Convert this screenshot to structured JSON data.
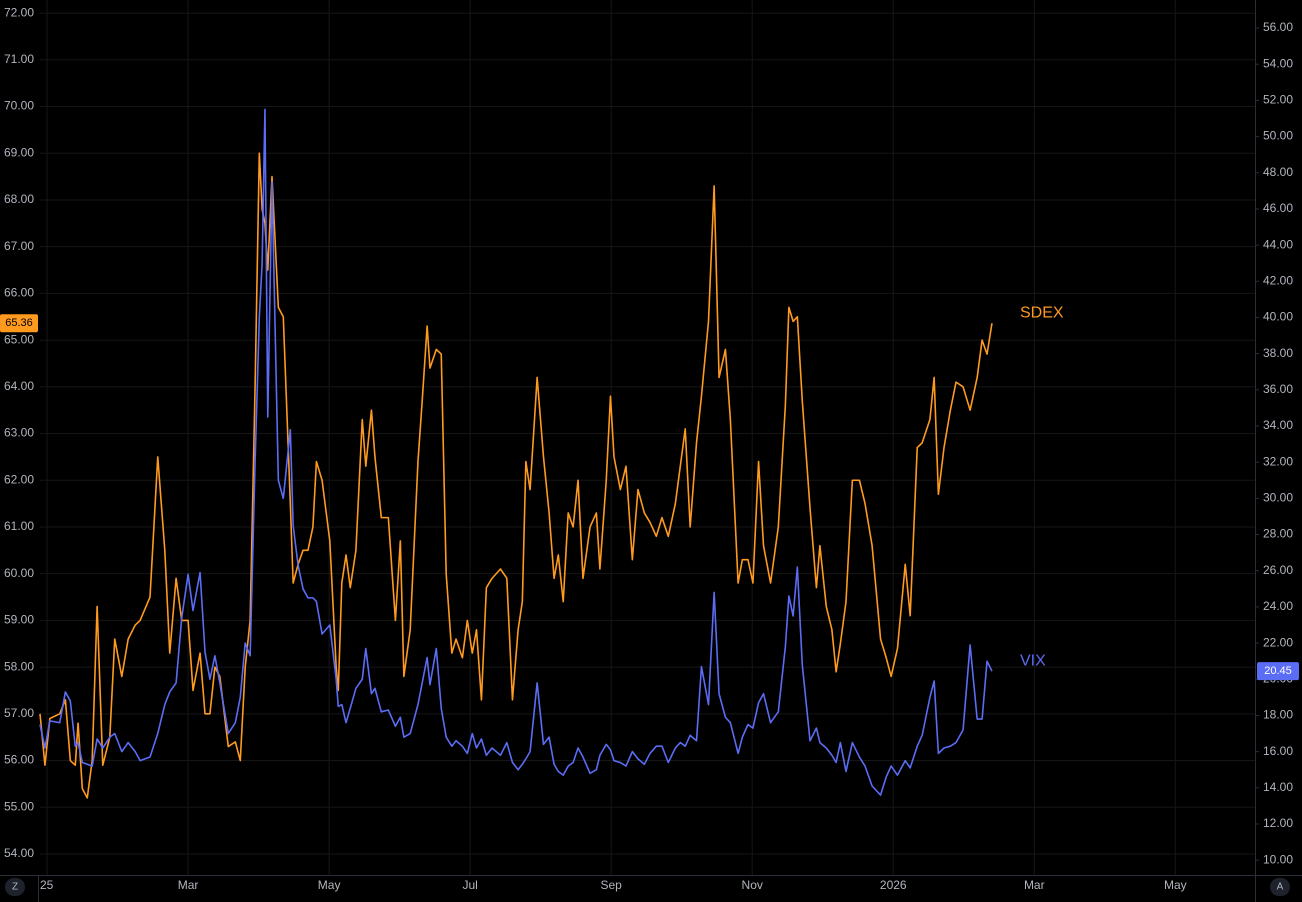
{
  "chart_data": {
    "type": "line",
    "x": [
      -0.1,
      -0.03,
      0.04,
      0.18,
      0.26,
      0.33,
      0.4,
      0.44,
      0.5,
      0.57,
      0.64,
      0.71,
      0.79,
      0.89,
      0.96,
      1.06,
      1.15,
      1.25,
      1.32,
      1.46,
      1.57,
      1.67,
      1.74,
      1.83,
      1.91,
      2.0,
      2.07,
      2.17,
      2.24,
      2.31,
      2.38,
      2.45,
      2.57,
      2.67,
      2.74,
      2.81,
      2.88,
      2.95,
      3.01,
      3.05,
      3.09,
      3.13,
      3.19,
      3.28,
      3.35,
      3.45,
      3.49,
      3.56,
      3.63,
      3.7,
      3.77,
      3.82,
      3.9,
      4.01,
      4.1,
      4.13,
      4.18,
      4.24,
      4.3,
      4.38,
      4.47,
      4.52,
      4.6,
      4.65,
      4.74,
      4.84,
      4.94,
      5.01,
      5.06,
      5.15,
      5.26,
      5.32,
      5.39,
      5.43,
      5.52,
      5.59,
      5.66,
      5.74,
      5.8,
      5.89,
      5.96,
      6.03,
      6.09,
      6.16,
      6.23,
      6.31,
      6.43,
      6.52,
      6.6,
      6.68,
      6.74,
      6.79,
      6.85,
      6.95,
      7.04,
      7.12,
      7.19,
      7.25,
      7.32,
      7.39,
      7.46,
      7.53,
      7.6,
      7.7,
      7.79,
      7.84,
      7.93,
      7.99,
      8.04,
      8.13,
      8.21,
      8.3,
      8.38,
      8.47,
      8.55,
      8.64,
      8.72,
      8.81,
      8.91,
      8.98,
      9.05,
      9.12,
      9.21,
      9.28,
      9.38,
      9.46,
      9.53,
      9.62,
      9.69,
      9.8,
      9.86,
      9.94,
      10.01,
      10.09,
      10.16,
      10.26,
      10.37,
      10.47,
      10.52,
      10.58,
      10.64,
      10.71,
      10.82,
      10.91,
      10.96,
      11.05,
      11.13,
      11.19,
      11.25,
      11.33,
      11.42,
      11.52,
      11.6,
      11.7,
      11.82,
      11.9,
      11.97,
      12.06,
      12.17,
      12.24,
      12.34,
      12.41,
      12.52,
      12.58,
      12.64,
      12.72,
      12.81,
      12.89,
      12.99,
      13.09,
      13.19,
      13.26,
      13.33,
      13.4
    ],
    "series": [
      {
        "name": "SDEX",
        "color": "#ff9a1f",
        "axis": "y",
        "values": [
          57.0,
          55.9,
          56.9,
          57.0,
          57.3,
          56.0,
          55.9,
          56.8,
          55.4,
          55.2,
          56.0,
          59.3,
          55.9,
          56.5,
          58.6,
          57.8,
          58.6,
          58.9,
          59.0,
          59.5,
          62.5,
          60.5,
          58.3,
          59.9,
          59.0,
          59.0,
          57.5,
          58.3,
          57.0,
          57.0,
          58.0,
          57.8,
          56.3,
          56.4,
          56.0,
          58.0,
          59.0,
          64.0,
          69.0,
          67.8,
          67.5,
          66.5,
          68.5,
          65.7,
          65.5,
          61.5,
          59.8,
          60.2,
          60.5,
          60.5,
          61.0,
          62.4,
          62.0,
          60.7,
          58.0,
          57.5,
          59.8,
          60.4,
          59.7,
          60.5,
          63.3,
          62.3,
          63.5,
          62.5,
          61.2,
          61.2,
          59.0,
          60.7,
          57.8,
          58.8,
          62.4,
          63.7,
          65.3,
          64.4,
          64.8,
          64.7,
          60.0,
          58.3,
          58.6,
          58.2,
          59.0,
          58.3,
          58.8,
          57.3,
          59.7,
          59.9,
          60.1,
          59.9,
          57.3,
          58.8,
          59.4,
          62.4,
          61.8,
          64.2,
          62.5,
          61.3,
          59.9,
          60.4,
          59.4,
          61.3,
          61.0,
          62.0,
          59.9,
          61.0,
          61.3,
          60.1,
          62.0,
          63.8,
          62.5,
          61.8,
          62.3,
          60.3,
          61.8,
          61.3,
          61.1,
          60.8,
          61.2,
          60.8,
          61.5,
          62.3,
          63.1,
          61.0,
          62.8,
          63.8,
          65.4,
          68.3,
          64.2,
          64.8,
          63.3,
          59.8,
          60.3,
          60.3,
          59.8,
          62.4,
          60.6,
          59.8,
          61.0,
          63.6,
          65.7,
          65.4,
          65.5,
          63.7,
          61.4,
          59.7,
          60.6,
          59.3,
          58.8,
          57.9,
          58.5,
          59.4,
          62.0,
          62.0,
          61.5,
          60.6,
          58.6,
          58.2,
          57.8,
          58.4,
          60.2,
          59.1,
          62.7,
          62.8,
          63.3,
          64.2,
          61.7,
          62.7,
          63.5,
          64.1,
          64.0,
          63.5,
          64.2,
          65.0,
          64.7,
          65.36
        ]
      },
      {
        "name": "VIX",
        "color": "#5b6cf5",
        "axis": "y2",
        "values": [
          17.5,
          16.2,
          17.7,
          17.6,
          19.3,
          18.8,
          16.3,
          16.5,
          15.4,
          15.3,
          15.2,
          16.7,
          16.2,
          16.8,
          17.0,
          16.0,
          16.5,
          16.0,
          15.5,
          15.7,
          17.0,
          18.6,
          19.3,
          19.8,
          23.4,
          25.8,
          23.8,
          25.9,
          21.5,
          20.0,
          21.3,
          19.8,
          17.0,
          17.6,
          19.0,
          22.0,
          21.3,
          32.0,
          40.0,
          43.0,
          51.5,
          34.5,
          47.5,
          31.0,
          30.0,
          33.8,
          28.5,
          26.3,
          25.0,
          24.5,
          24.5,
          24.3,
          22.5,
          23.0,
          20.0,
          18.5,
          18.6,
          17.6,
          18.4,
          19.5,
          20.0,
          21.7,
          19.2,
          19.5,
          18.2,
          18.3,
          17.4,
          17.9,
          16.8,
          17.0,
          18.6,
          19.8,
          21.2,
          19.7,
          21.7,
          18.4,
          16.8,
          16.3,
          16.6,
          16.3,
          15.9,
          17.0,
          16.2,
          16.7,
          15.8,
          16.2,
          15.8,
          16.5,
          15.4,
          15.0,
          15.3,
          15.6,
          16.0,
          19.8,
          16.4,
          16.8,
          15.3,
          14.9,
          14.7,
          15.2,
          15.4,
          16.2,
          15.7,
          14.8,
          15.0,
          15.8,
          16.4,
          16.1,
          15.5,
          15.4,
          15.2,
          16.0,
          15.6,
          15.3,
          15.9,
          16.3,
          16.3,
          15.4,
          16.2,
          16.5,
          16.3,
          16.9,
          16.6,
          20.7,
          18.6,
          24.8,
          19.2,
          17.9,
          17.6,
          15.9,
          16.8,
          17.5,
          17.3,
          18.7,
          19.2,
          17.6,
          18.2,
          21.8,
          24.6,
          23.5,
          26.2,
          20.8,
          16.6,
          17.3,
          16.5,
          16.2,
          15.8,
          15.4,
          16.5,
          14.9,
          16.5,
          15.7,
          15.2,
          14.1,
          13.6,
          14.6,
          15.2,
          14.7,
          15.5,
          15.1,
          16.3,
          16.9,
          19.0,
          19.9,
          15.9,
          16.2,
          16.3,
          16.5,
          17.2,
          21.9,
          17.8,
          17.8,
          21.0,
          20.45
        ]
      }
    ],
    "xlim": [
      -0.1,
      17.13
    ],
    "xticks": [
      {
        "value": 0,
        "label": "25"
      },
      {
        "value": 2,
        "label": "Mar"
      },
      {
        "value": 4,
        "label": "May"
      },
      {
        "value": 6,
        "label": "Jul"
      },
      {
        "value": 8,
        "label": "Sep"
      },
      {
        "value": 10,
        "label": "Nov"
      },
      {
        "value": 12,
        "label": "2026"
      },
      {
        "value": 14,
        "label": "Mar"
      },
      {
        "value": 16,
        "label": "May"
      }
    ],
    "ylim": [
      53.55,
      72.28
    ],
    "yticks": [
      {
        "value": 54,
        "label": "54.00"
      },
      {
        "value": 55,
        "label": "55.00"
      },
      {
        "value": 56,
        "label": "56.00"
      },
      {
        "value": 57,
        "label": "57.00"
      },
      {
        "value": 58,
        "label": "58.00"
      },
      {
        "value": 59,
        "label": "59.00"
      },
      {
        "value": 60,
        "label": "60.00"
      },
      {
        "value": 61,
        "label": "61.00"
      },
      {
        "value": 62,
        "label": "62.00"
      },
      {
        "value": 63,
        "label": "63.00"
      },
      {
        "value": 64,
        "label": "64.00"
      },
      {
        "value": 65,
        "label": "65.00"
      },
      {
        "value": 66,
        "label": "66.00"
      },
      {
        "value": 67,
        "label": "67.00"
      },
      {
        "value": 68,
        "label": "68.00"
      },
      {
        "value": 69,
        "label": "69.00"
      },
      {
        "value": 70,
        "label": "70.00"
      },
      {
        "value": 71,
        "label": "71.00"
      },
      {
        "value": 72,
        "label": "72.00"
      }
    ],
    "y2lim": [
      9.18,
      57.55
    ],
    "y2ticks": [
      {
        "value": 10,
        "label": "10.00"
      },
      {
        "value": 12,
        "label": "12.00"
      },
      {
        "value": 14,
        "label": "14.00"
      },
      {
        "value": 16,
        "label": "16.00"
      },
      {
        "value": 18,
        "label": "18.00"
      },
      {
        "value": 20,
        "label": "20.00"
      },
      {
        "value": 22,
        "label": "22.00"
      },
      {
        "value": 24,
        "label": "24.00"
      },
      {
        "value": 26,
        "label": "26.00"
      },
      {
        "value": 28,
        "label": "28.00"
      },
      {
        "value": 30,
        "label": "30.00"
      },
      {
        "value": 32,
        "label": "32.00"
      },
      {
        "value": 34,
        "label": "34.00"
      },
      {
        "value": 36,
        "label": "36.00"
      },
      {
        "value": 38,
        "label": "38.00"
      },
      {
        "value": 40,
        "label": "40.00"
      },
      {
        "value": 42,
        "label": "42.00"
      },
      {
        "value": 44,
        "label": "44.00"
      },
      {
        "value": 46,
        "label": "46.00"
      },
      {
        "value": 48,
        "label": "48.00"
      },
      {
        "value": 50,
        "label": "50.00"
      },
      {
        "value": 52,
        "label": "52.00"
      },
      {
        "value": 54,
        "label": "54.00"
      },
      {
        "value": 56,
        "label": "56.00"
      }
    ],
    "grid": true
  },
  "controls": {
    "left": "Z",
    "right": "A"
  }
}
